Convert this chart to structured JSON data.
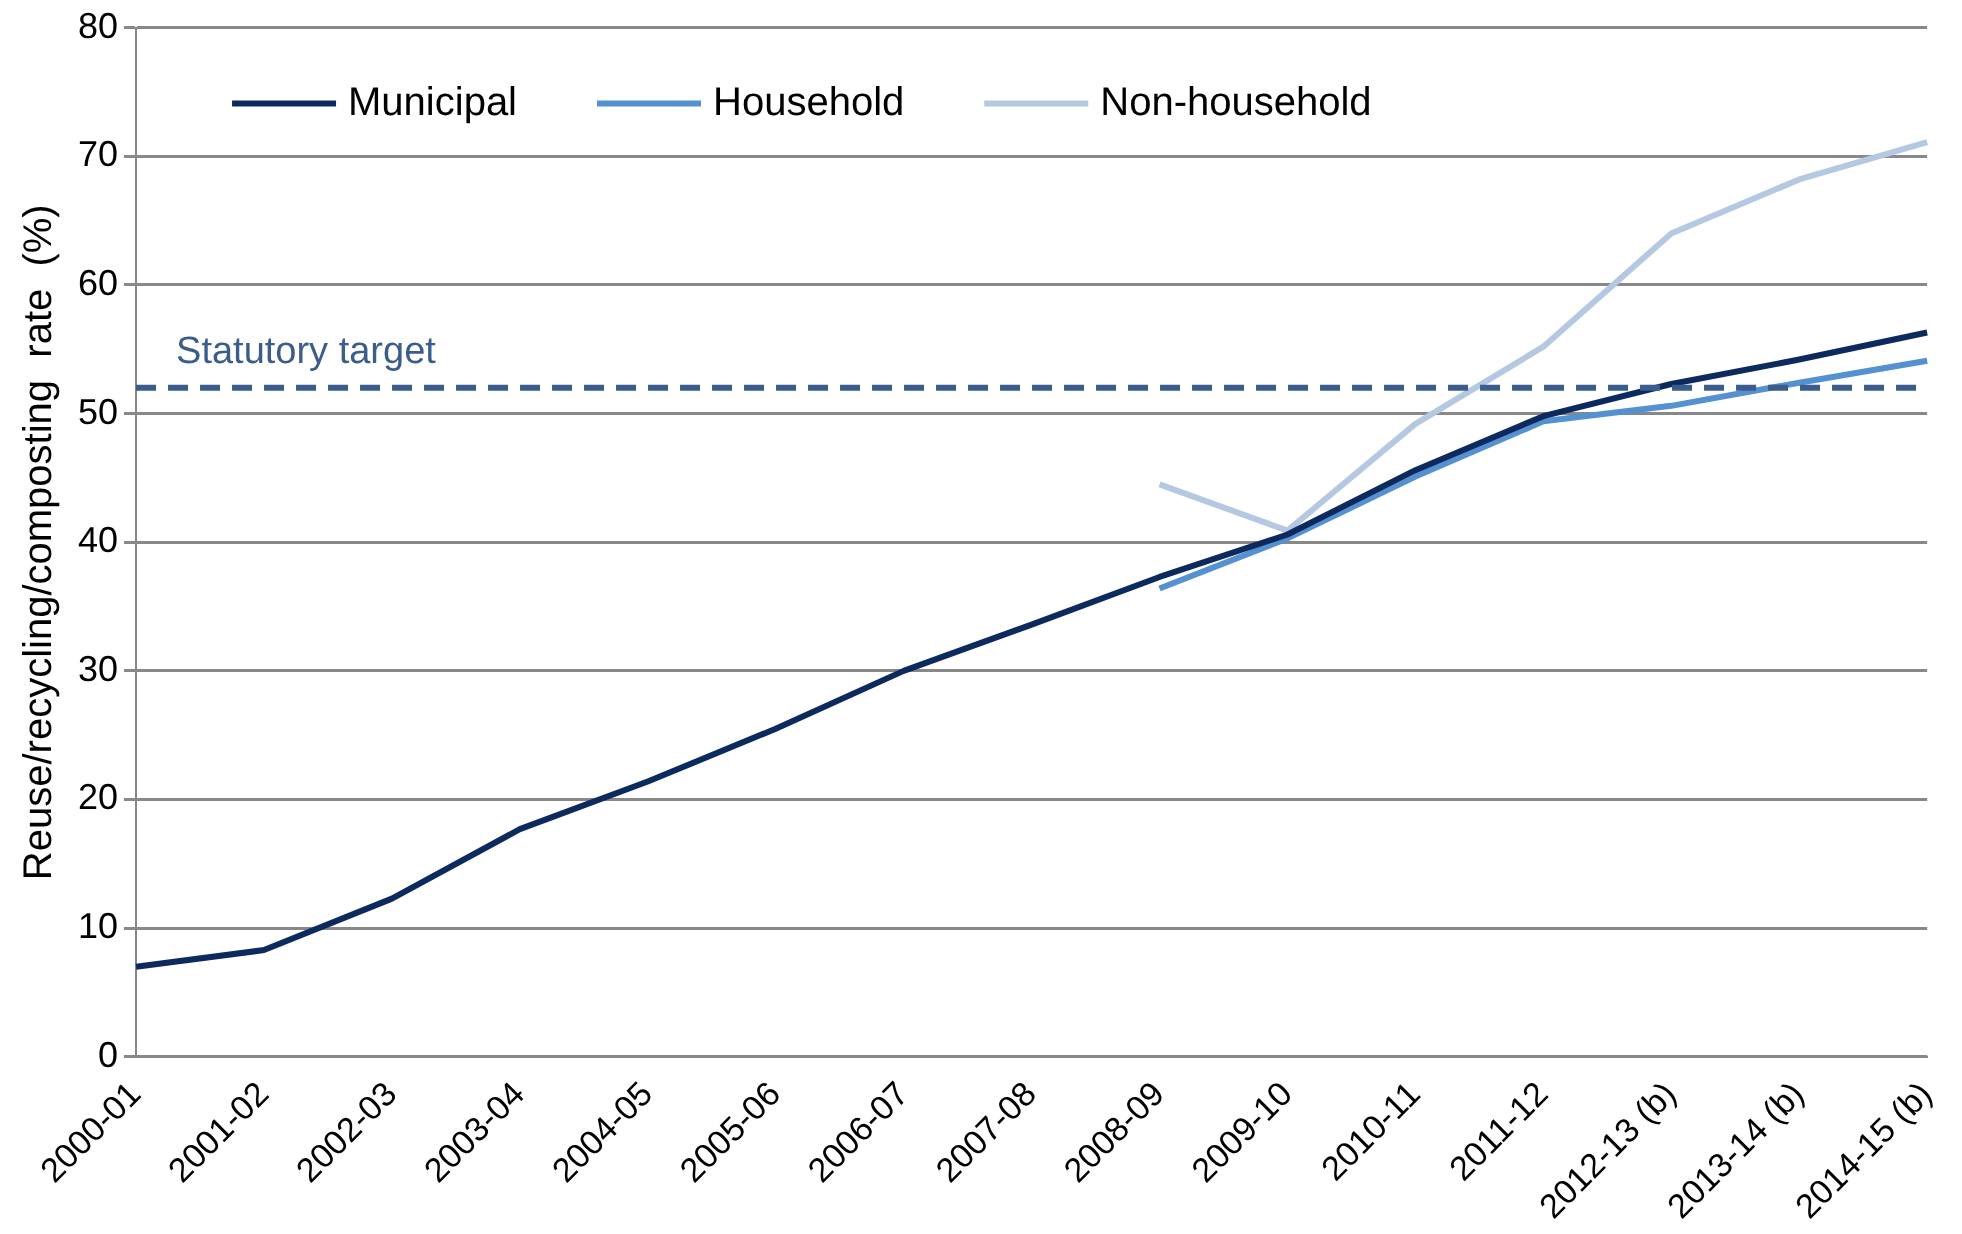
{
  "chart_data": {
    "type": "line",
    "ylabel": "Reuse/recycling/composting  rate  (%)",
    "categories": [
      "2000-01",
      "2001-02",
      "2002-03",
      "2003-04",
      "2004-05",
      "2005-06",
      "2006-07",
      "2007-08",
      "2008-09",
      "2009-10",
      "2010-11",
      "2011-12",
      "2012-13 (b)",
      "2013-14 (b)",
      "2014-15 (b)"
    ],
    "series": [
      {
        "name": "Municipal",
        "color": "#0d2a5e",
        "values": [
          7.0,
          8.3,
          12.3,
          17.7,
          21.4,
          25.5,
          30.0,
          33.6,
          37.3,
          40.6,
          45.6,
          49.8,
          52.3,
          54.2,
          56.3
        ]
      },
      {
        "name": "Household",
        "color": "#5590d0",
        "values": [
          null,
          null,
          null,
          null,
          null,
          null,
          null,
          null,
          36.4,
          40.3,
          45.1,
          49.4,
          50.6,
          52.4,
          54.1
        ]
      },
      {
        "name": "Non-household",
        "color": "#b5c8e2",
        "values": [
          null,
          null,
          null,
          null,
          null,
          null,
          null,
          null,
          44.5,
          40.9,
          49.2,
          55.2,
          64.0,
          68.2,
          71.1
        ]
      }
    ],
    "ylim": [
      0,
      80
    ],
    "yticks": [
      0,
      10,
      20,
      30,
      40,
      50,
      60,
      70,
      80
    ],
    "grid": "y",
    "legend": "top left",
    "marker": "none",
    "line_style": "solid",
    "ref_lines": [
      {
        "axis": "y",
        "value": 52,
        "label": "Statutory target",
        "color": "#3b5d8c",
        "line_style": "dashed"
      }
    ]
  }
}
